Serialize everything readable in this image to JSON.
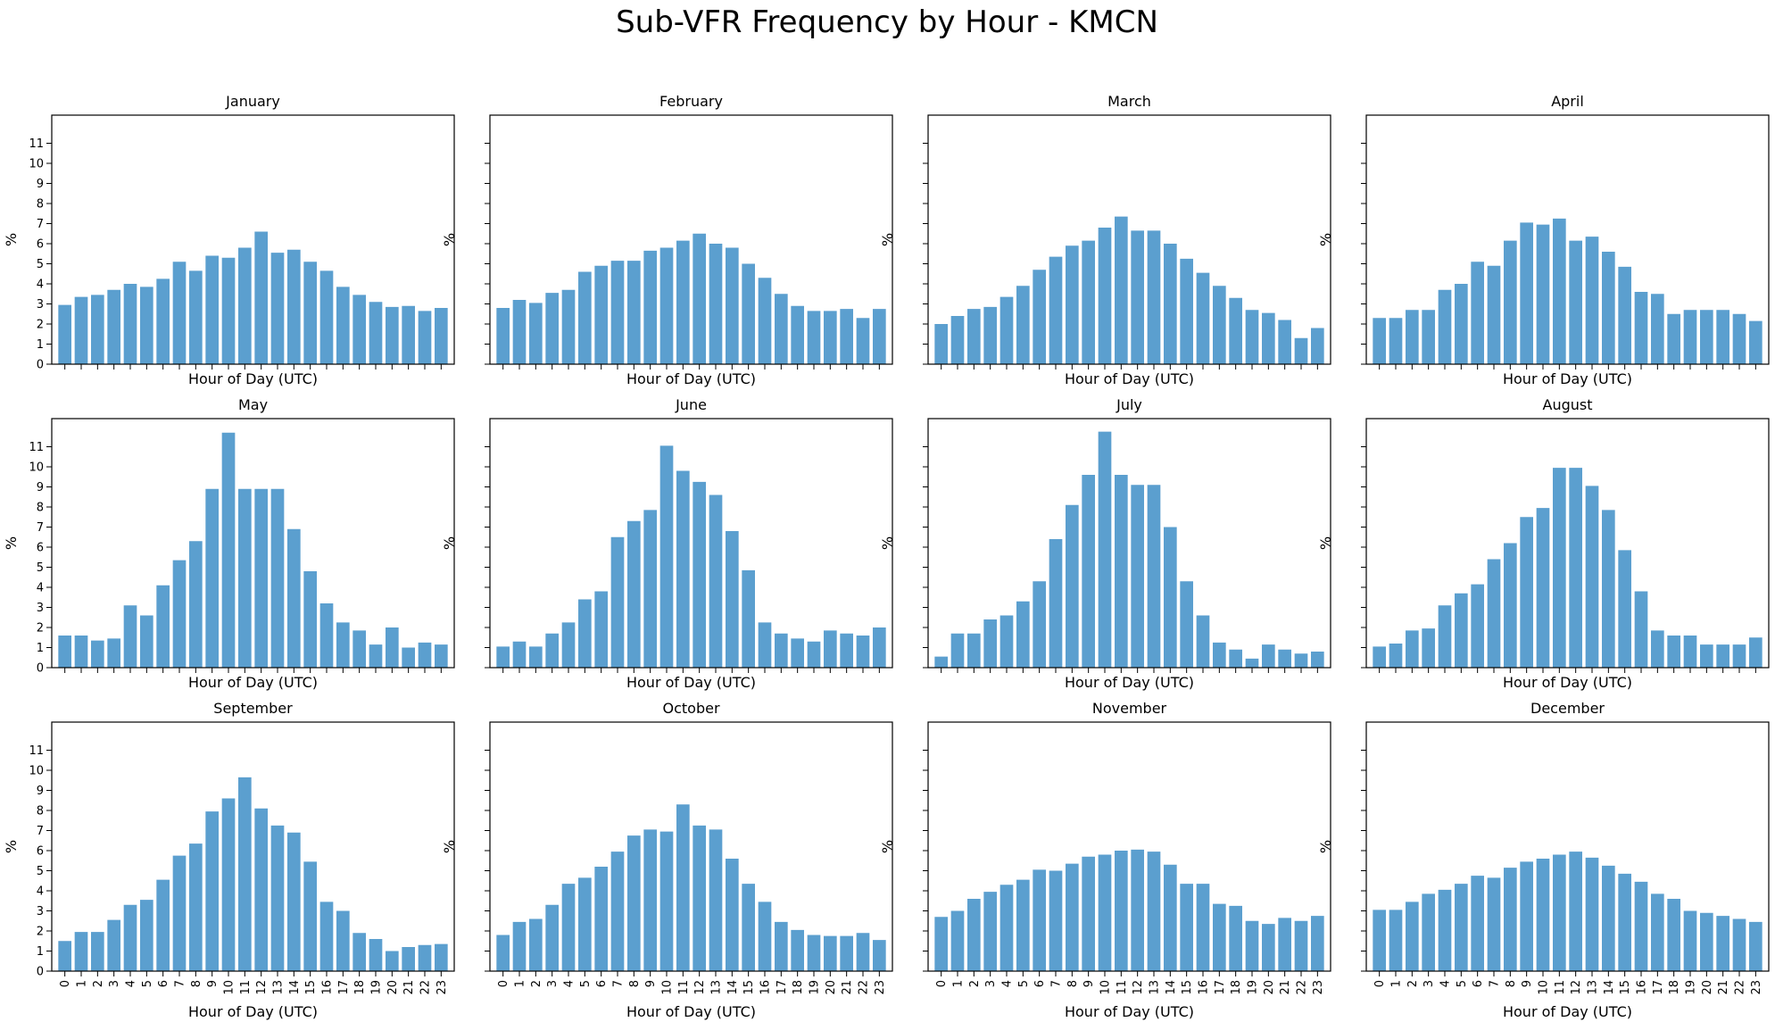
{
  "chart_data": {
    "type": "bar",
    "title": "Sub-VFR Frequency by Hour - KMCN",
    "xlabel": "Hour of Day (UTC)",
    "ylabel": "%",
    "categories": [
      "0",
      "1",
      "2",
      "3",
      "4",
      "5",
      "6",
      "7",
      "8",
      "9",
      "10",
      "11",
      "12",
      "13",
      "14",
      "15",
      "16",
      "17",
      "18",
      "19",
      "20",
      "21",
      "22",
      "23"
    ],
    "yticks": [
      0,
      1,
      2,
      3,
      4,
      5,
      6,
      7,
      8,
      9,
      10,
      11
    ],
    "ylim": [
      0,
      12.4
    ],
    "grid": false,
    "bar_color": "#5b9fcf",
    "panels": [
      {
        "title": "January",
        "values": [
          2.95,
          3.35,
          3.45,
          3.7,
          4.0,
          3.85,
          4.25,
          5.1,
          4.65,
          5.4,
          5.3,
          5.8,
          6.6,
          5.55,
          5.7,
          5.1,
          4.65,
          3.85,
          3.45,
          3.1,
          2.85,
          2.9,
          2.65,
          2.8
        ]
      },
      {
        "title": "February",
        "values": [
          2.8,
          3.2,
          3.05,
          3.55,
          3.7,
          4.6,
          4.9,
          5.15,
          5.15,
          5.65,
          5.8,
          6.15,
          6.5,
          6.0,
          5.8,
          5.0,
          4.3,
          3.5,
          2.9,
          2.65,
          2.65,
          2.75,
          2.3,
          2.75
        ]
      },
      {
        "title": "March",
        "values": [
          2.0,
          2.4,
          2.75,
          2.85,
          3.35,
          3.9,
          4.7,
          5.35,
          5.9,
          6.15,
          6.8,
          7.35,
          6.65,
          6.65,
          6.0,
          5.25,
          4.55,
          3.9,
          3.3,
          2.7,
          2.55,
          2.2,
          1.3,
          1.8
        ]
      },
      {
        "title": "April",
        "values": [
          2.3,
          2.3,
          2.7,
          2.7,
          3.7,
          4.0,
          5.1,
          4.9,
          6.15,
          7.05,
          6.95,
          7.25,
          6.15,
          6.35,
          5.6,
          4.85,
          3.6,
          3.5,
          2.5,
          2.7,
          2.7,
          2.7,
          2.5,
          2.15
        ]
      },
      {
        "title": "May",
        "values": [
          1.6,
          1.6,
          1.35,
          1.45,
          3.1,
          2.6,
          4.1,
          5.35,
          6.3,
          8.9,
          11.7,
          8.9,
          8.9,
          8.9,
          6.9,
          4.8,
          3.2,
          2.25,
          1.85,
          1.15,
          2.0,
          1.0,
          1.25,
          1.15
        ]
      },
      {
        "title": "June",
        "values": [
          1.05,
          1.3,
          1.05,
          1.7,
          2.25,
          3.4,
          3.8,
          6.5,
          7.3,
          7.85,
          11.05,
          9.8,
          9.25,
          8.6,
          6.8,
          4.85,
          2.25,
          1.7,
          1.45,
          1.3,
          1.85,
          1.7,
          1.6,
          2.0
        ]
      },
      {
        "title": "July",
        "values": [
          0.55,
          1.7,
          1.7,
          2.4,
          2.6,
          3.3,
          4.3,
          6.4,
          8.1,
          9.6,
          11.75,
          9.6,
          9.1,
          9.1,
          7.0,
          4.3,
          2.6,
          1.25,
          0.9,
          0.45,
          1.15,
          0.9,
          0.7,
          0.8
        ]
      },
      {
        "title": "August",
        "values": [
          1.05,
          1.2,
          1.85,
          1.95,
          3.1,
          3.7,
          4.15,
          5.4,
          6.2,
          7.5,
          7.95,
          9.95,
          9.95,
          9.05,
          7.85,
          5.85,
          3.8,
          1.85,
          1.6,
          1.6,
          1.15,
          1.15,
          1.15,
          1.5
        ]
      },
      {
        "title": "September",
        "values": [
          1.5,
          1.95,
          1.95,
          2.55,
          3.3,
          3.55,
          4.55,
          5.75,
          6.35,
          7.95,
          8.6,
          9.65,
          8.1,
          7.25,
          6.9,
          5.45,
          3.45,
          3.0,
          1.9,
          1.6,
          1.0,
          1.2,
          1.3,
          1.35
        ]
      },
      {
        "title": "October",
        "values": [
          1.8,
          2.45,
          2.6,
          3.3,
          4.35,
          4.65,
          5.2,
          5.95,
          6.75,
          7.05,
          6.95,
          8.3,
          7.25,
          7.05,
          5.6,
          4.35,
          3.45,
          2.45,
          2.05,
          1.8,
          1.75,
          1.75,
          1.9,
          1.55
        ]
      },
      {
        "title": "November",
        "values": [
          2.7,
          3.0,
          3.6,
          3.95,
          4.3,
          4.55,
          5.05,
          5.0,
          5.35,
          5.7,
          5.8,
          6.0,
          6.05,
          5.95,
          5.3,
          4.35,
          4.35,
          3.35,
          3.25,
          2.5,
          2.35,
          2.65,
          2.5,
          2.75
        ]
      },
      {
        "title": "December",
        "values": [
          3.05,
          3.05,
          3.45,
          3.85,
          4.05,
          4.35,
          4.75,
          4.65,
          5.15,
          5.45,
          5.6,
          5.8,
          5.95,
          5.65,
          5.25,
          4.85,
          4.45,
          3.85,
          3.6,
          3.0,
          2.9,
          2.75,
          2.6,
          2.45
        ]
      }
    ]
  }
}
